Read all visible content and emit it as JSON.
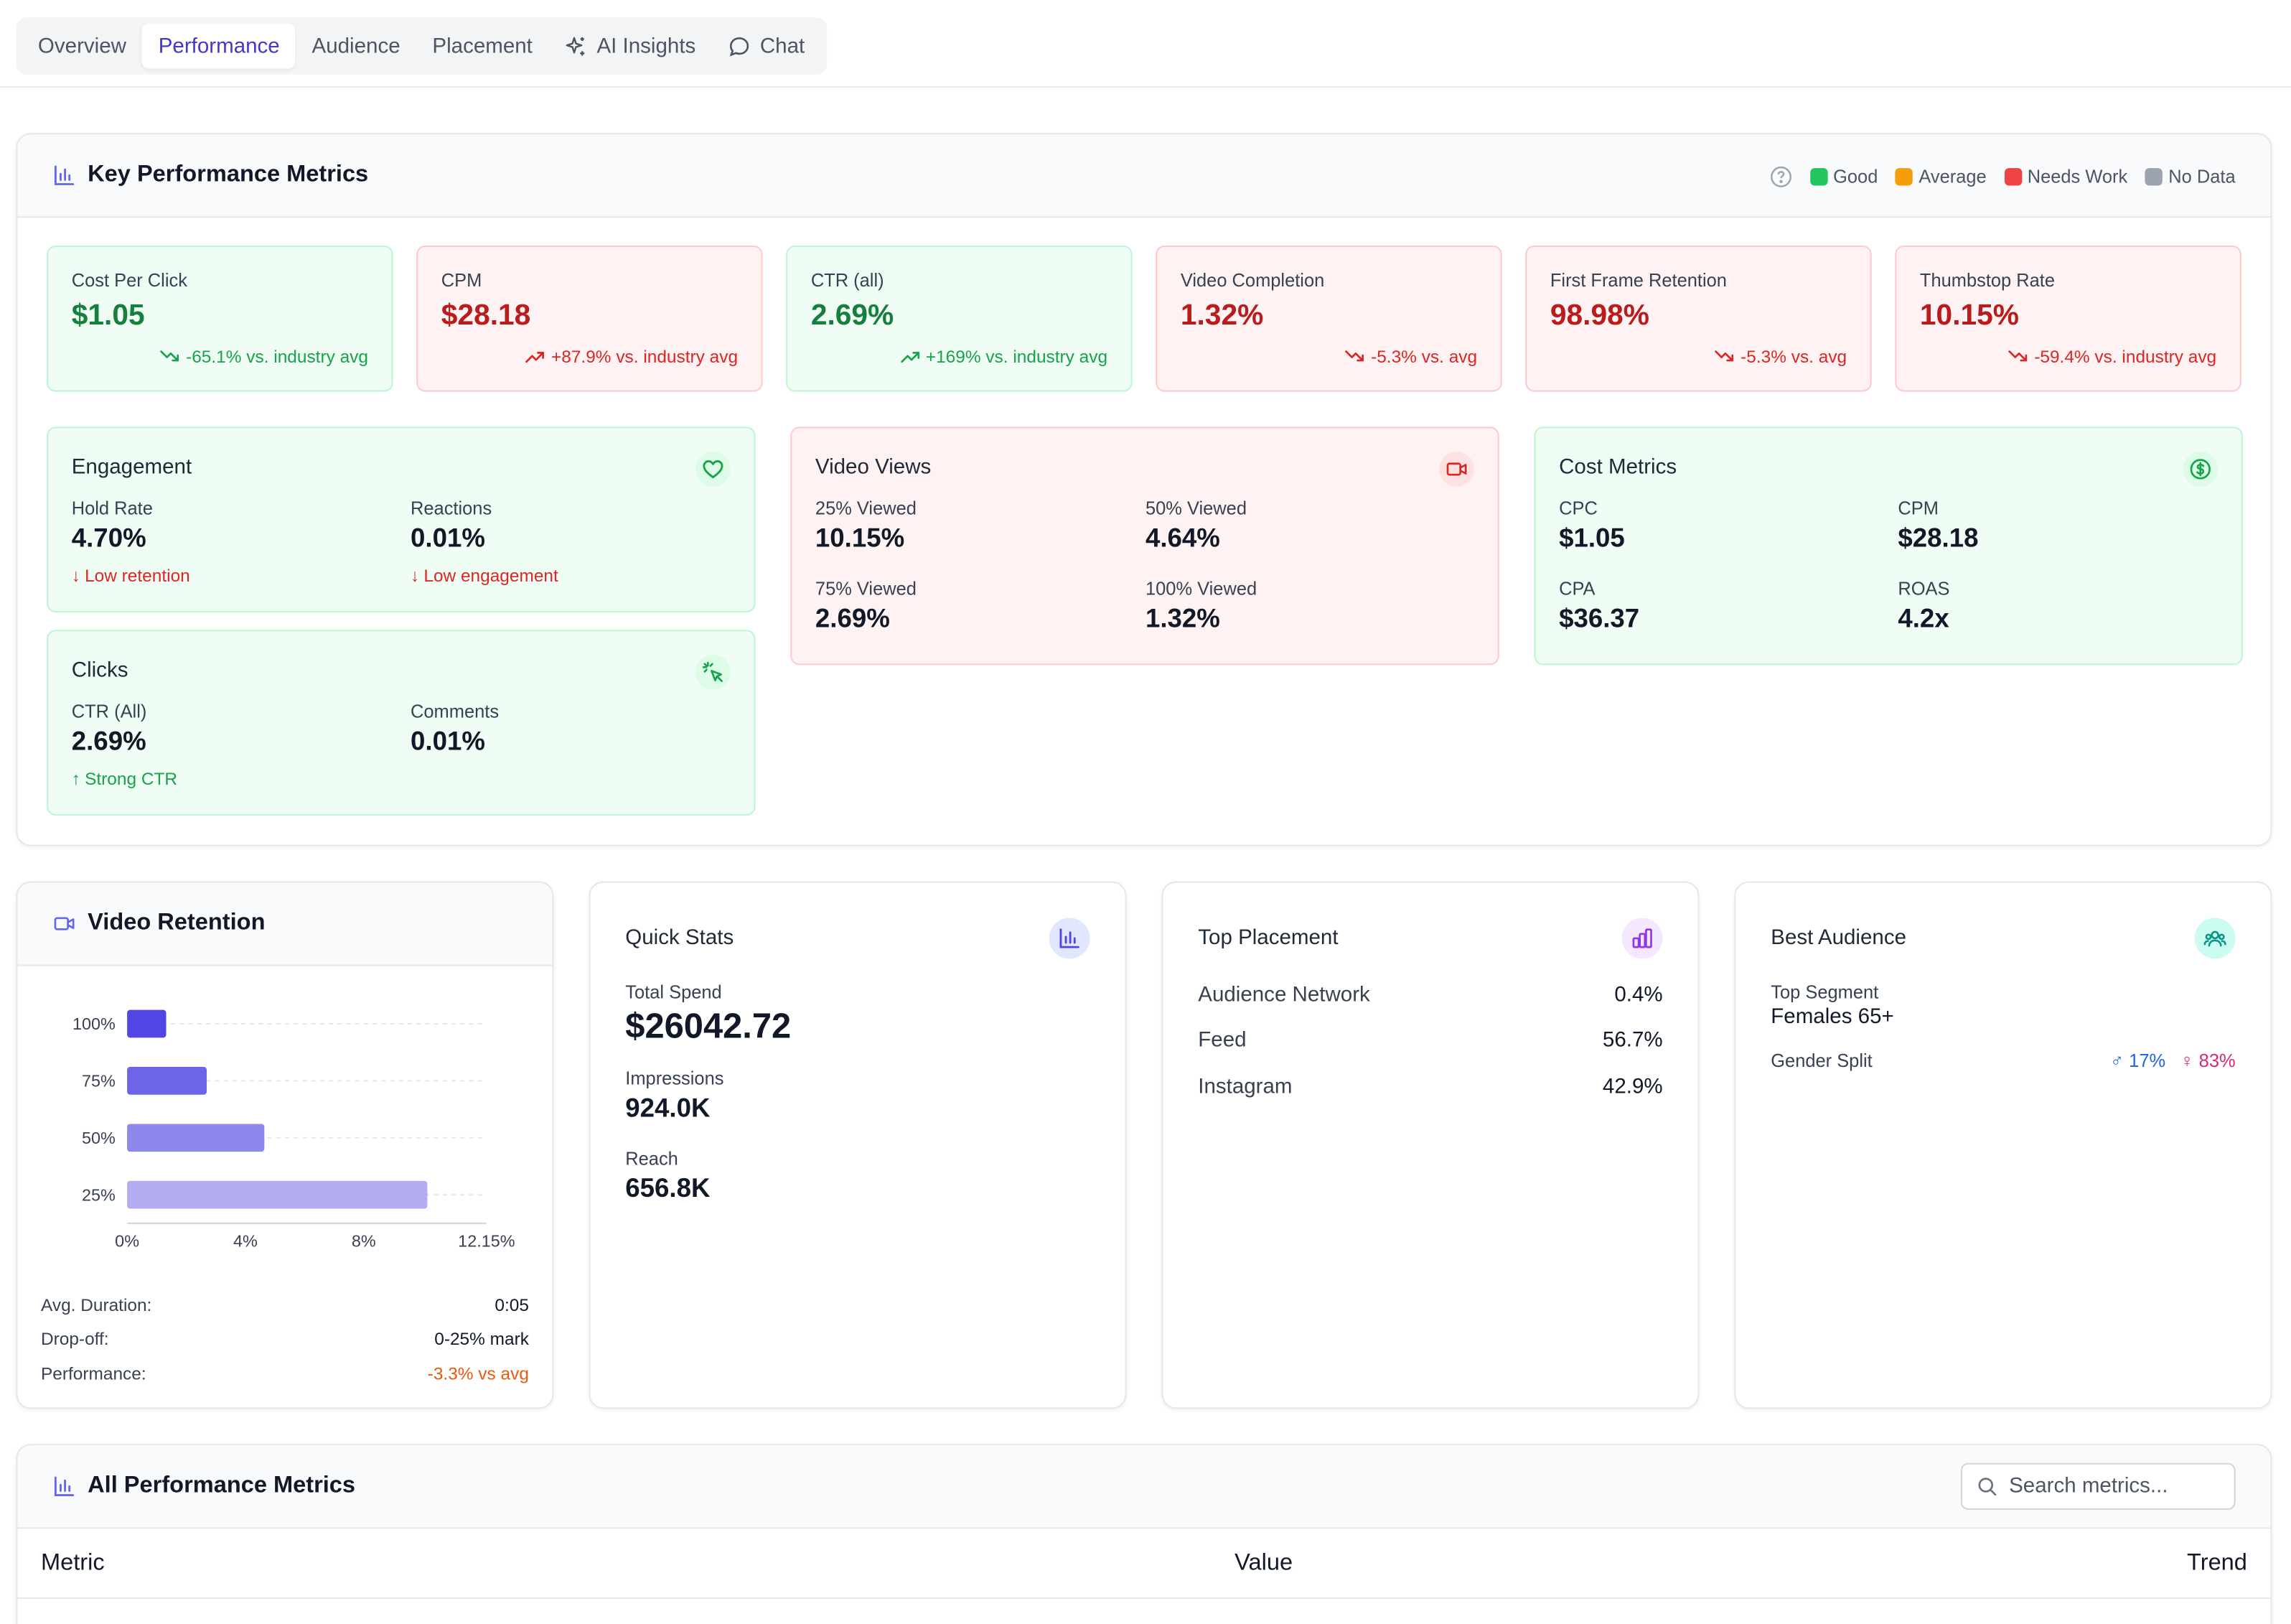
{
  "tabs": [
    {
      "label": "Overview",
      "active": false
    },
    {
      "label": "Performance",
      "active": true
    },
    {
      "label": "Audience",
      "active": false
    },
    {
      "label": "Placement",
      "active": false
    },
    {
      "label": "AI Insights",
      "active": false,
      "icon": "sparkle-icon"
    },
    {
      "label": "Chat",
      "active": false,
      "icon": "chat-bubble-icon"
    }
  ],
  "kpi": {
    "title": "Key Performance Metrics",
    "legend": [
      {
        "label": "Good",
        "color": "#22c55e"
      },
      {
        "label": "Average",
        "color": "#f59e0b"
      },
      {
        "label": "Needs Work",
        "color": "#ef4444"
      },
      {
        "label": "No Data",
        "color": "#9ca3af"
      }
    ],
    "metrics": [
      {
        "label": "Cost Per Click",
        "value": "$1.05",
        "trend": "-65.1% vs. industry avg",
        "status": "good",
        "direction": "down"
      },
      {
        "label": "CPM",
        "value": "$28.18",
        "trend": "+87.9% vs. industry avg",
        "status": "bad",
        "direction": "up"
      },
      {
        "label": "CTR (all)",
        "value": "2.69%",
        "trend": "+169% vs. industry avg",
        "status": "good",
        "direction": "up"
      },
      {
        "label": "Video Completion",
        "value": "1.32%",
        "trend": "-5.3% vs. avg",
        "status": "bad",
        "direction": "down"
      },
      {
        "label": "First Frame Retention",
        "value": "98.98%",
        "trend": "-5.3% vs. avg",
        "status": "bad",
        "direction": "down"
      },
      {
        "label": "Thumbstop Rate",
        "value": "10.15%",
        "trend": "-59.4% vs. industry avg",
        "status": "bad",
        "direction": "down"
      }
    ],
    "engagement": {
      "title": "Engagement",
      "hold_label": "Hold Rate",
      "hold_value": "4.70%",
      "hold_note": "Low retention",
      "reactions_label": "Reactions",
      "reactions_value": "0.01%",
      "reactions_note": "Low engagement"
    },
    "clicks": {
      "title": "Clicks",
      "ctr_label": "CTR (All)",
      "ctr_value": "2.69%",
      "ctr_note": "Strong CTR",
      "comments_label": "Comments",
      "comments_value": "0.01%"
    },
    "video_views": {
      "title": "Video Views",
      "v25_label": "25% Viewed",
      "v25_value": "10.15%",
      "v50_label": "50% Viewed",
      "v50_value": "4.64%",
      "v75_label": "75% Viewed",
      "v75_value": "2.69%",
      "v100_label": "100% Viewed",
      "v100_value": "1.32%"
    },
    "cost_metrics": {
      "title": "Cost Metrics",
      "cpc_label": "CPC",
      "cpc_value": "$1.05",
      "cpm_label": "CPM",
      "cpm_value": "$28.18",
      "cpa_label": "CPA",
      "cpa_value": "$36.37",
      "roas_label": "ROAS",
      "roas_value": "4.2x"
    }
  },
  "retention": {
    "title": "Video Retention",
    "avg_duration_label": "Avg. Duration:",
    "avg_duration_value": "0:05",
    "dropoff_label": "Drop-off:",
    "dropoff_value": "0-25% mark",
    "performance_label": "Performance:",
    "performance_value": "-3.3% vs avg"
  },
  "chart_data": {
    "type": "bar",
    "orientation": "horizontal",
    "categories": [
      "100%",
      "75%",
      "50%",
      "25%"
    ],
    "values": [
      1.32,
      2.69,
      4.64,
      10.15
    ],
    "colors": [
      "#4f46e5",
      "#6d64e8",
      "#8e87ec",
      "#b2adf2"
    ],
    "xlim": [
      0,
      12.15
    ],
    "xticks": [
      "0%",
      "4%",
      "8%",
      "12.15%"
    ],
    "xtick_values": [
      0,
      4,
      8,
      12.15
    ],
    "grid": true
  },
  "quick_stats": {
    "title": "Quick Stats",
    "spend_label": "Total Spend",
    "spend_value": "$26042.72",
    "impressions_label": "Impressions",
    "impressions_value": "924.0K",
    "reach_label": "Reach",
    "reach_value": "656.8K"
  },
  "top_placement": {
    "title": "Top Placement",
    "rows": [
      {
        "name": "Audience Network",
        "value": "0.4%"
      },
      {
        "name": "Feed",
        "value": "56.7%"
      },
      {
        "name": "Instagram",
        "value": "42.9%"
      }
    ]
  },
  "best_audience": {
    "title": "Best Audience",
    "segment_label": "Top Segment",
    "segment_value": "Females 65+",
    "gender_label": "Gender Split",
    "male_value": "17%",
    "female_value": "83%"
  },
  "all_metrics": {
    "title": "All Performance Metrics",
    "search_placeholder": "Search metrics...",
    "columns": [
      "Metric",
      "Value",
      "Trend"
    ]
  }
}
